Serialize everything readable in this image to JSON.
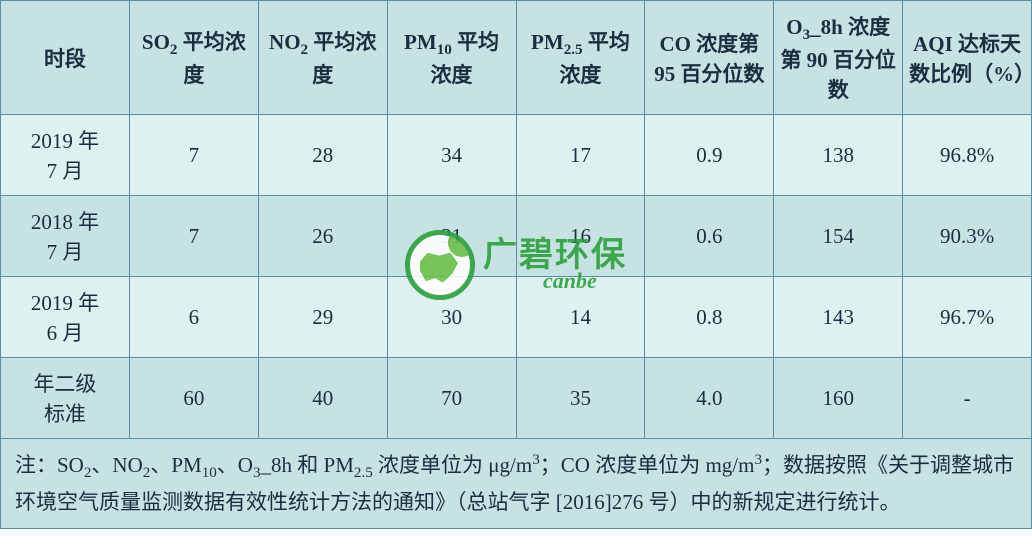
{
  "table": {
    "columns": [
      {
        "label_html": "时段"
      },
      {
        "label_html": "SO<span class=\"sub\">2</span> 平均浓度"
      },
      {
        "label_html": "NO<span class=\"sub\">2</span> 平均浓度"
      },
      {
        "label_html": "PM<span class=\"sub\">10</span> 平均浓度"
      },
      {
        "label_html": "PM<span class=\"sub\">2.5</span> 平均浓度"
      },
      {
        "label_html": "CO 浓度第 95 百分位数"
      },
      {
        "label_html": "O<span class=\"sub\">3</span>_8h 浓度第 90 百分位数"
      },
      {
        "label_html": "AQI 达标天数比例（%）"
      }
    ],
    "rows": [
      {
        "period": "2019 年<br>7 月",
        "values": [
          "7",
          "28",
          "34",
          "17",
          "0.9",
          "138",
          "96.8%"
        ],
        "row_class": "data-row-odd"
      },
      {
        "period": "2018 年<br>7 月",
        "values": [
          "7",
          "26",
          "31",
          "16",
          "0.6",
          "154",
          "90.3%"
        ],
        "row_class": "data-row-even"
      },
      {
        "period": "2019 年<br>6 月",
        "values": [
          "6",
          "29",
          "30",
          "14",
          "0.8",
          "143",
          "96.7%"
        ],
        "row_class": "data-row-odd"
      },
      {
        "period": "年二级<br>标准",
        "values": [
          "60",
          "40",
          "70",
          "35",
          "4.0",
          "160",
          "-"
        ],
        "row_class": "data-row-even"
      }
    ],
    "footnote_html": "注：SO<span class=\"sub\">2</span>、NO<span class=\"sub\">2</span>、PM<span class=\"sub\">10</span>、O<span class=\"sub\">3</span>_8h 和 PM<span class=\"sub\">2.5</span> 浓度单位为 μg/m<span class=\"sup\">3</span>；CO 浓度单位为 mg/m<span class=\"sup\">3</span>；数据按照《关于调整城市环境空气质量监测数据有效性统计方法的通知》（总站气字 [2016]276 号）中的新规定进行统计。",
    "colors": {
      "border": "#5a8fa3",
      "bg_light": "#dff0f0",
      "bg_dark": "#c6e2e2",
      "text": "#1a2e40"
    }
  },
  "watermark": {
    "text_cn": "广碧环保",
    "text_en": "canbe",
    "brand_color": "#2a9d3a",
    "leaf_color": "#6ec048"
  }
}
